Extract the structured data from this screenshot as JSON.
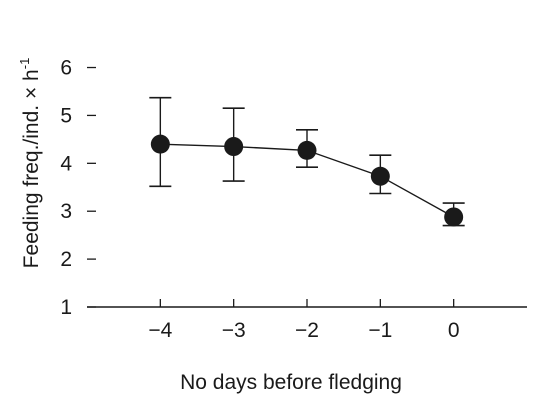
{
  "chart_data": {
    "type": "line",
    "xlabel": "No days before fledging",
    "ylabel": "Feeding freq./ind. × h",
    "ylabel_superscript": "-1",
    "x": [
      -4,
      -3,
      -2,
      -1,
      0
    ],
    "x_tick_labels": [
      "−4",
      "−3",
      "−2",
      "−1",
      "0"
    ],
    "y_ticks": [
      1,
      2,
      3,
      4,
      5,
      6
    ],
    "y_tick_labels": [
      "1",
      "2",
      "3",
      "4",
      "5",
      "6"
    ],
    "xlim": [
      -5,
      1
    ],
    "ylim": [
      1,
      6.7
    ],
    "grid": false,
    "legend": "none",
    "series": [
      {
        "values": [
          4.4,
          4.35,
          4.27,
          3.73,
          2.88
        ],
        "error_upper": [
          5.37,
          5.15,
          4.7,
          4.17,
          3.17
        ],
        "error_lower": [
          3.52,
          3.63,
          3.92,
          3.37,
          2.7
        ]
      }
    ],
    "colors": {
      "ink": "#1a1a1a",
      "background": "#ffffff"
    }
  }
}
